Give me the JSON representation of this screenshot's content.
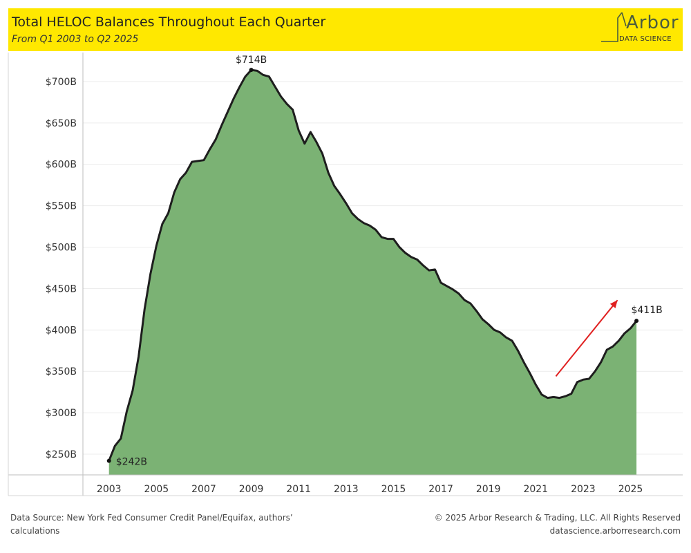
{
  "header": {
    "title": "Total HELOC Balances Throughout Each Quarter",
    "subtitle": "From Q1 2003 to Q2 2025"
  },
  "logo": {
    "wordmark": "Arbor",
    "tagline": "DATA SCIENCE"
  },
  "footer": {
    "source": "Data Source: New York Fed Consumer Credit Panel/Equifax, authors’ calculations",
    "copyright": "© 2025 Arbor Research & Trading, LLC. All Rights Reserved",
    "website": "datascience.arborresearch.com"
  },
  "colors": {
    "header_bg": "#ffe800",
    "area_fill": "#7bb274",
    "line": "#1e1e1e",
    "arrow": "#e02020"
  },
  "chart_data": {
    "type": "area",
    "title": "Total HELOC Balances Throughout Each Quarter",
    "subtitle": "From Q1 2003 to Q2 2025",
    "xlabel": "",
    "ylabel": "",
    "ylim": [
      225,
      735
    ],
    "xlim": [
      2001.9,
      2027.2
    ],
    "grid": true,
    "y_ticks": [
      {
        "value": 250,
        "label": "$250B"
      },
      {
        "value": 300,
        "label": "$300B"
      },
      {
        "value": 350,
        "label": "$350B"
      },
      {
        "value": 400,
        "label": "$400B"
      },
      {
        "value": 450,
        "label": "$450B"
      },
      {
        "value": 500,
        "label": "$500B"
      },
      {
        "value": 550,
        "label": "$550B"
      },
      {
        "value": 600,
        "label": "$600B"
      },
      {
        "value": 650,
        "label": "$650B"
      },
      {
        "value": 700,
        "label": "$700B"
      }
    ],
    "x_ticks": [
      {
        "value": 2003,
        "label": "2003"
      },
      {
        "value": 2005,
        "label": "2005"
      },
      {
        "value": 2007,
        "label": "2007"
      },
      {
        "value": 2009,
        "label": "2009"
      },
      {
        "value": 2011,
        "label": "2011"
      },
      {
        "value": 2013,
        "label": "2013"
      },
      {
        "value": 2015,
        "label": "2015"
      },
      {
        "value": 2017,
        "label": "2017"
      },
      {
        "value": 2019,
        "label": "2019"
      },
      {
        "value": 2021,
        "label": "2021"
      },
      {
        "value": 2023,
        "label": "2023"
      },
      {
        "value": 2025,
        "label": "2025"
      }
    ],
    "series": [
      {
        "values": [
          [
            2003.0,
            242
          ],
          [
            2003.25,
            260
          ],
          [
            2003.5,
            269
          ],
          [
            2003.75,
            302
          ],
          [
            2004.0,
            327
          ],
          [
            2004.25,
            368
          ],
          [
            2004.5,
            425
          ],
          [
            2004.75,
            468
          ],
          [
            2005.0,
            502
          ],
          [
            2005.25,
            528
          ],
          [
            2005.5,
            541
          ],
          [
            2005.75,
            566
          ],
          [
            2006.0,
            582
          ],
          [
            2006.25,
            590
          ],
          [
            2006.5,
            603
          ],
          [
            2006.75,
            604
          ],
          [
            2007.0,
            605
          ],
          [
            2007.25,
            618
          ],
          [
            2007.5,
            630
          ],
          [
            2007.75,
            647
          ],
          [
            2008.0,
            663
          ],
          [
            2008.25,
            679
          ],
          [
            2008.5,
            693
          ],
          [
            2008.75,
            706
          ],
          [
            2009.0,
            714
          ],
          [
            2009.25,
            713
          ],
          [
            2009.5,
            708
          ],
          [
            2009.75,
            706
          ],
          [
            2010.0,
            694
          ],
          [
            2010.25,
            682
          ],
          [
            2010.5,
            673
          ],
          [
            2010.75,
            666
          ],
          [
            2011.0,
            641
          ],
          [
            2011.25,
            625
          ],
          [
            2011.5,
            639
          ],
          [
            2011.75,
            627
          ],
          [
            2012.0,
            613
          ],
          [
            2012.25,
            590
          ],
          [
            2012.5,
            574
          ],
          [
            2012.75,
            564
          ],
          [
            2013.0,
            553
          ],
          [
            2013.25,
            541
          ],
          [
            2013.5,
            534
          ],
          [
            2013.75,
            529
          ],
          [
            2014.0,
            526
          ],
          [
            2014.25,
            521
          ],
          [
            2014.5,
            512
          ],
          [
            2014.75,
            510
          ],
          [
            2015.0,
            510
          ],
          [
            2015.25,
            500
          ],
          [
            2015.5,
            493
          ],
          [
            2015.75,
            488
          ],
          [
            2016.0,
            485
          ],
          [
            2016.25,
            478
          ],
          [
            2016.5,
            472
          ],
          [
            2016.75,
            473
          ],
          [
            2017.0,
            457
          ],
          [
            2017.25,
            453
          ],
          [
            2017.5,
            449
          ],
          [
            2017.75,
            444
          ],
          [
            2018.0,
            436
          ],
          [
            2018.25,
            432
          ],
          [
            2018.5,
            423
          ],
          [
            2018.75,
            413
          ],
          [
            2019.0,
            407
          ],
          [
            2019.25,
            400
          ],
          [
            2019.5,
            397
          ],
          [
            2019.75,
            391
          ],
          [
            2020.0,
            387
          ],
          [
            2020.25,
            375
          ],
          [
            2020.5,
            361
          ],
          [
            2020.75,
            348
          ],
          [
            2021.0,
            334
          ],
          [
            2021.25,
            322
          ],
          [
            2021.5,
            318
          ],
          [
            2021.75,
            319
          ],
          [
            2022.0,
            318
          ],
          [
            2022.25,
            320
          ],
          [
            2022.5,
            323
          ],
          [
            2022.75,
            337
          ],
          [
            2023.0,
            340
          ],
          [
            2023.25,
            341
          ],
          [
            2023.5,
            350
          ],
          [
            2023.75,
            361
          ],
          [
            2024.0,
            376
          ],
          [
            2024.25,
            380
          ],
          [
            2024.5,
            387
          ],
          [
            2024.75,
            396
          ],
          [
            2025.0,
            402
          ],
          [
            2025.25,
            411
          ]
        ]
      }
    ],
    "annotations": [
      {
        "label": "$242B",
        "x": 2003.0,
        "y": 242
      },
      {
        "label": "$714B",
        "x": 2009.0,
        "y": 714
      },
      {
        "label": "$411B",
        "x": 2025.25,
        "y": 411
      }
    ],
    "trend_arrow": {
      "from": [
        2021.85,
        344
      ],
      "to": [
        2024.45,
        436
      ]
    }
  }
}
